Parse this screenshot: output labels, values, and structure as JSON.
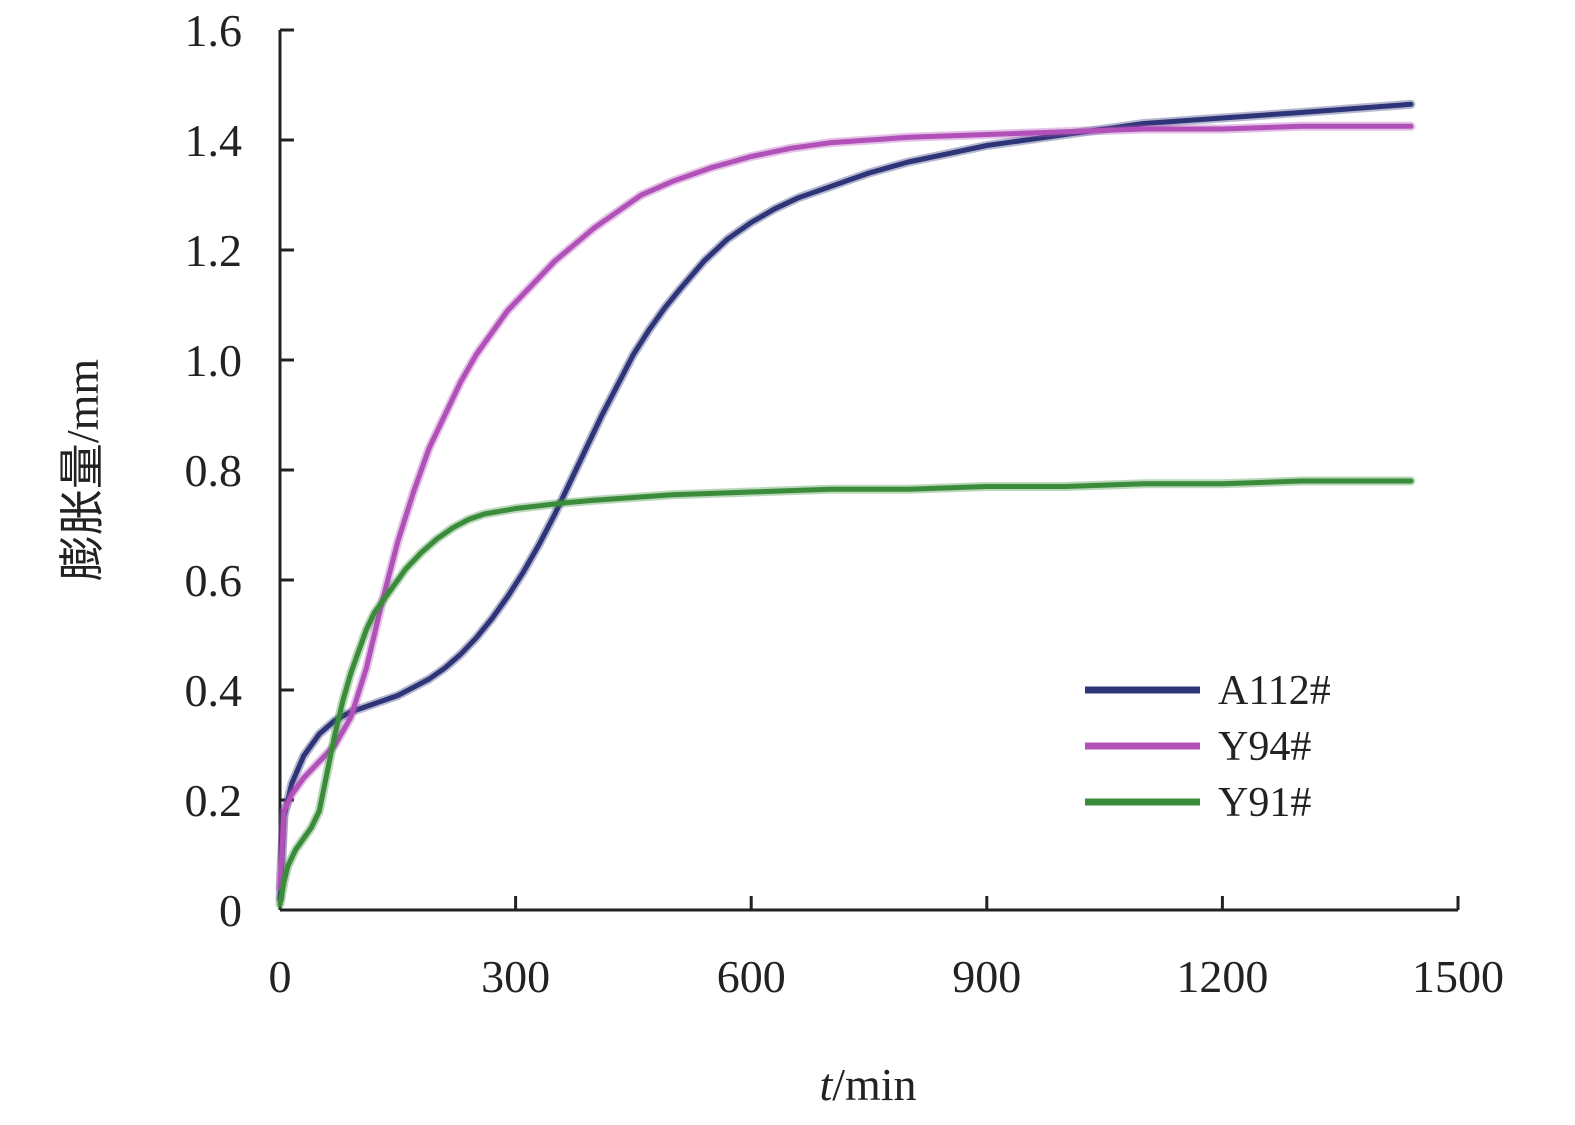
{
  "chart_data": {
    "type": "line",
    "title": "",
    "xlabel_italic": "t",
    "xlabel_unit": "/min",
    "ylabel": "膨胀量/mm",
    "xlim": [
      0,
      1500
    ],
    "ylim": [
      0,
      1.6
    ],
    "x_ticks": [
      "0",
      "300",
      "600",
      "900",
      "1200",
      "1500"
    ],
    "y_ticks": [
      "0",
      "0.2",
      "0.4",
      "0.6",
      "0.8",
      "1.0",
      "1.2",
      "1.4",
      "1.6"
    ],
    "grid": false,
    "legend_position": "bottom-right",
    "series": [
      {
        "name": "A112#",
        "color": "#2e3478",
        "x": [
          0,
          5,
          15,
          30,
          50,
          70,
          90,
          110,
          130,
          150,
          170,
          190,
          210,
          230,
          250,
          270,
          290,
          310,
          330,
          350,
          370,
          390,
          410,
          430,
          450,
          470,
          490,
          510,
          540,
          570,
          600,
          630,
          660,
          700,
          750,
          800,
          850,
          900,
          950,
          1000,
          1050,
          1100,
          1200,
          1300,
          1440
        ],
        "y": [
          0.02,
          0.17,
          0.23,
          0.28,
          0.32,
          0.345,
          0.36,
          0.37,
          0.38,
          0.39,
          0.405,
          0.42,
          0.44,
          0.465,
          0.495,
          0.53,
          0.57,
          0.615,
          0.665,
          0.72,
          0.78,
          0.84,
          0.9,
          0.955,
          1.01,
          1.055,
          1.095,
          1.13,
          1.18,
          1.22,
          1.25,
          1.275,
          1.295,
          1.315,
          1.34,
          1.36,
          1.375,
          1.39,
          1.4,
          1.41,
          1.42,
          1.43,
          1.44,
          1.45,
          1.465
        ]
      },
      {
        "name": "Y94#",
        "color": "#b050b8",
        "x": [
          0,
          5,
          15,
          30,
          50,
          70,
          90,
          110,
          130,
          150,
          170,
          190,
          210,
          230,
          250,
          270,
          290,
          310,
          330,
          350,
          375,
          400,
          430,
          460,
          500,
          550,
          600,
          650,
          700,
          800,
          900,
          1000,
          1100,
          1200,
          1300,
          1440
        ],
        "y": [
          0.04,
          0.18,
          0.21,
          0.24,
          0.27,
          0.3,
          0.35,
          0.44,
          0.56,
          0.67,
          0.76,
          0.84,
          0.9,
          0.96,
          1.01,
          1.05,
          1.09,
          1.12,
          1.15,
          1.18,
          1.21,
          1.24,
          1.27,
          1.3,
          1.325,
          1.35,
          1.37,
          1.385,
          1.395,
          1.405,
          1.41,
          1.415,
          1.42,
          1.42,
          1.425,
          1.425
        ]
      },
      {
        "name": "Y91#",
        "color": "#3a8c3a",
        "x": [
          0,
          5,
          10,
          20,
          30,
          40,
          50,
          60,
          70,
          80,
          90,
          100,
          110,
          120,
          140,
          160,
          180,
          200,
          220,
          240,
          260,
          280,
          300,
          330,
          360,
          400,
          450,
          500,
          600,
          700,
          800,
          900,
          1000,
          1100,
          1200,
          1300,
          1440
        ],
        "y": [
          0.01,
          0.05,
          0.08,
          0.11,
          0.13,
          0.15,
          0.18,
          0.25,
          0.32,
          0.38,
          0.43,
          0.47,
          0.51,
          0.54,
          0.58,
          0.62,
          0.65,
          0.675,
          0.695,
          0.71,
          0.72,
          0.725,
          0.73,
          0.735,
          0.74,
          0.745,
          0.75,
          0.755,
          0.76,
          0.765,
          0.765,
          0.77,
          0.77,
          0.775,
          0.775,
          0.78,
          0.78
        ]
      }
    ]
  }
}
